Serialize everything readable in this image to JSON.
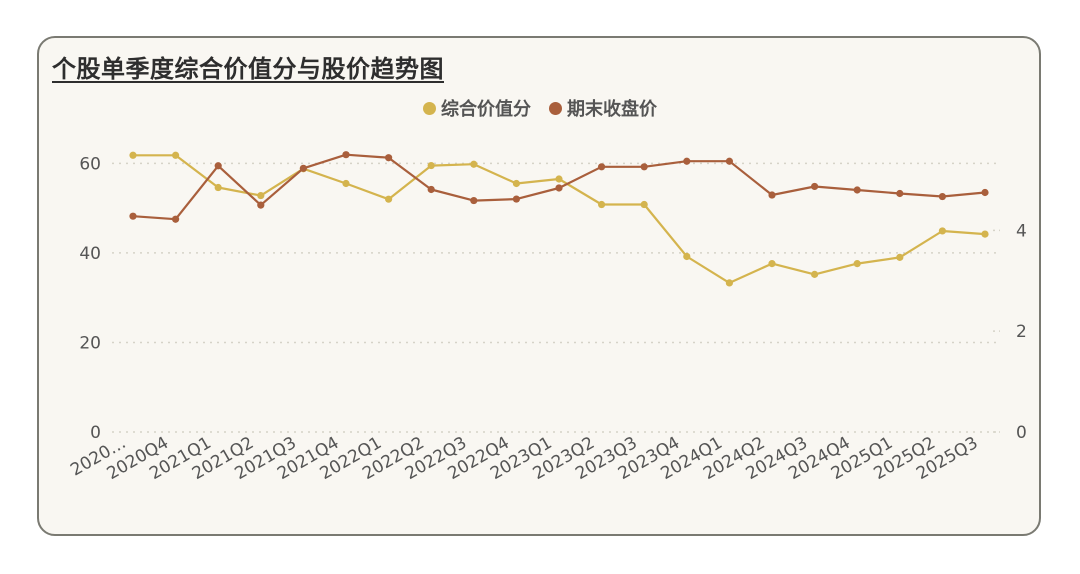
{
  "chart_data": {
    "type": "line",
    "title": "个股单季度综合价值分与股价趋势图",
    "categories": [
      "2020Q3",
      "2020Q4",
      "2021Q1",
      "2021Q2",
      "2021Q3",
      "2021Q4",
      "2022Q1",
      "2022Q2",
      "2022Q3",
      "2022Q4",
      "2023Q1",
      "2023Q2",
      "2023Q3",
      "2023Q4",
      "2024Q1",
      "2024Q2",
      "2024Q3",
      "2024Q4",
      "2025Q1",
      "2025Q2",
      "2025Q3"
    ],
    "x_tick_labels": [
      "2020…",
      "2020Q4",
      "2021Q1",
      "2021Q2",
      "2021Q3",
      "2021Q4",
      "2022Q1",
      "2022Q2",
      "2022Q3",
      "2022Q4",
      "2023Q1",
      "2023Q2",
      "2023Q3",
      "2023Q4",
      "2024Q1",
      "2024Q2",
      "2024Q3",
      "2024Q4",
      "2025Q1",
      "2025Q2",
      "2025Q3"
    ],
    "series": [
      {
        "name": "综合价值分",
        "axis": "left",
        "color": "#d4b44e",
        "values": [
          61.8,
          61.8,
          54.6,
          52.8,
          58.8,
          55.5,
          52.0,
          59.5,
          59.8,
          55.5,
          56.5,
          50.8,
          50.8,
          39.2,
          33.3,
          37.6,
          35.2,
          37.6,
          39.0,
          44.9,
          44.2
        ]
      },
      {
        "name": "期末收盘价",
        "axis": "right",
        "color": "#a95f3c",
        "values": [
          4.28,
          4.22,
          5.28,
          4.5,
          5.23,
          5.5,
          5.44,
          4.81,
          4.59,
          4.62,
          4.84,
          5.26,
          5.26,
          5.37,
          5.37,
          4.7,
          4.87,
          4.8,
          4.73,
          4.67,
          4.75
        ]
      }
    ],
    "y_left": {
      "ticks": [
        "0",
        "20",
        "40",
        "60"
      ],
      "range": [
        0,
        67
      ]
    },
    "y_right": {
      "ticks": [
        "0",
        "2",
        "4"
      ],
      "range": [
        0,
        5.95
      ]
    },
    "grid": "horizontal-dotted",
    "legend_position": "top-center"
  },
  "colors": {
    "card_background": "#f9f7f2",
    "card_border": "#7a7a72",
    "grid": "#d6d3c8"
  }
}
